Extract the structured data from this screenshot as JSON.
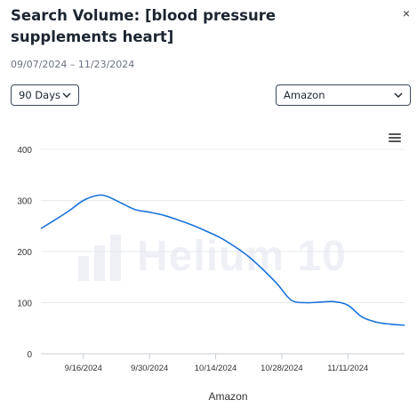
{
  "header": {
    "title": "Search Volume: [blood pressure supplements heart]",
    "date_range": "09/07/2024 – 11/23/2024",
    "close_label": "×"
  },
  "controls": {
    "period_label": "90 Days",
    "marketplace_label": "Amazon"
  },
  "watermark": {
    "text": "Helium 10"
  },
  "colors": {
    "line": "#1a73d9",
    "grid": "#e6e9ee",
    "text": "#333333"
  },
  "chart_data": {
    "type": "line",
    "title": "",
    "xlabel": "Amazon",
    "ylabel": "",
    "ylim": [
      0,
      400
    ],
    "yticks": [
      0,
      100,
      200,
      300,
      400
    ],
    "grid": true,
    "xticks": [
      {
        "label": "9/16/2024",
        "date": "2024-09-16"
      },
      {
        "label": "9/30/2024",
        "date": "2024-09-30"
      },
      {
        "label": "10/14/2024",
        "date": "2024-10-14"
      },
      {
        "label": "10/28/2024",
        "date": "2024-10-28"
      },
      {
        "label": "11/11/2024",
        "date": "2024-11-11"
      }
    ],
    "series": [
      {
        "x": [
          "2024-09-07",
          "2024-09-10",
          "2024-09-13",
          "2024-09-16",
          "2024-09-19",
          "2024-09-21",
          "2024-09-24",
          "2024-09-27",
          "2024-09-30",
          "2024-10-03",
          "2024-10-06",
          "2024-10-09",
          "2024-10-12",
          "2024-10-15",
          "2024-10-18",
          "2024-10-21",
          "2024-10-24",
          "2024-10-27",
          "2024-10-30",
          "2024-11-02",
          "2024-11-05",
          "2024-11-08",
          "2024-11-11",
          "2024-11-14",
          "2024-11-17",
          "2024-11-20",
          "2024-11-23"
        ],
        "y": [
          245,
          262,
          280,
          300,
          310,
          308,
          295,
          282,
          277,
          271,
          262,
          252,
          240,
          227,
          210,
          190,
          165,
          137,
          105,
          100,
          101,
          102,
          95,
          72,
          62,
          58,
          56
        ]
      }
    ]
  }
}
